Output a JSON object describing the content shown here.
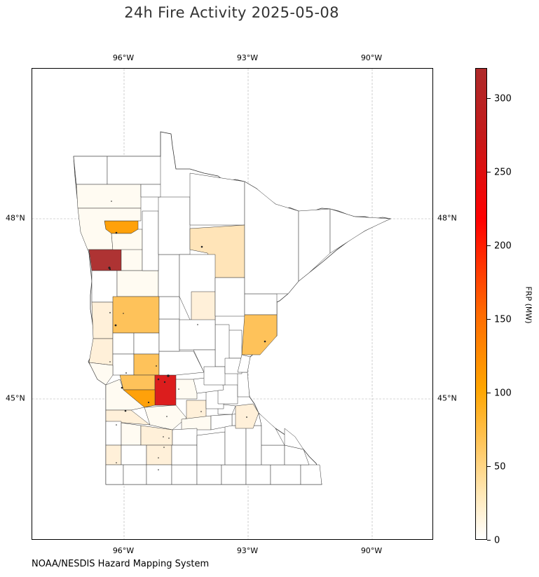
{
  "title": "24h Fire Activity 2025-05-08",
  "credit": "NOAA/NESDIS Hazard Mapping System",
  "axes": {
    "lon_labels": [
      "96°W",
      "93°W",
      "90°W"
    ],
    "lat_labels": [
      "48°N",
      "45°N"
    ]
  },
  "colorbar": {
    "label": "FRP (MW)",
    "ticks": [
      "0",
      "50",
      "100",
      "150",
      "200",
      "250",
      "300"
    ],
    "range": [
      0,
      320
    ],
    "colors": [
      "#ffffff",
      "#ffe7b3",
      "#ffc04d",
      "#ffa500",
      "#ff6a00",
      "#ff0000",
      "#ae2a2a"
    ]
  },
  "map": {
    "region": "Minnesota counties",
    "gridlines": true,
    "county_fill_colors": {
      "none": "#ffffff",
      "trace": "#fffbf2",
      "low": "#fff0d9",
      "light": "#ffe4b8",
      "medium": "#fec25a",
      "orange": "#ffa10a",
      "red": "#dc1d1d",
      "darkred": "#ae3333"
    }
  }
}
